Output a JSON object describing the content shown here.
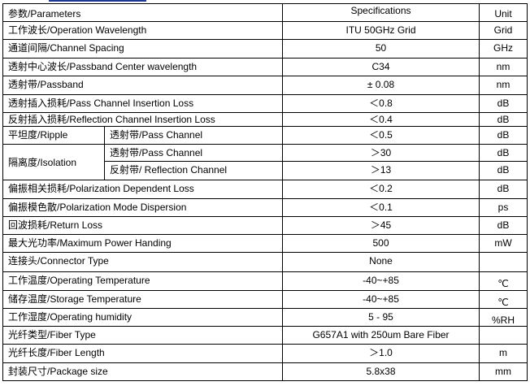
{
  "header": {
    "parameter": "参数/Parameters",
    "spec": "Specifications",
    "unit": "Unit"
  },
  "rows": [
    {
      "param": "工作波长/Operation Wavelength",
      "spec": "ITU 50GHz Grid",
      "unit": "Grid"
    },
    {
      "param": "通道间隔/Channel Spacing",
      "spec": "50",
      "unit": "GHz"
    },
    {
      "param": "透射中心波长/Passband Center wavelength",
      "spec": "C34",
      "unit": "nm"
    },
    {
      "param": "透射带/Passband",
      "spec": "± 0.08",
      "unit": "nm"
    },
    {
      "param": "透射插入损耗/Pass Channel Insertion Loss",
      "spec": "＜0.8",
      "unit": "dB"
    },
    {
      "param": "反射插入损耗/Reflection Channel Insertion Loss",
      "spec": "＜0.4",
      "unit": "dB"
    },
    {
      "param": "平坦度/Ripple",
      "sub": "透射带/Pass Channel",
      "spec": "＜0.5",
      "unit": "dB"
    },
    {
      "param": "隔离度/Isolation",
      "sub": "透射带/Pass Channel",
      "spec": "＞30",
      "unit": "dB"
    },
    {
      "sub": "反射带/ Reflection Channel",
      "spec": "＞13",
      "unit": "dB"
    },
    {
      "param": "偏振相关损耗/Polarization Dependent Loss",
      "spec": "＜0.2",
      "unit": "dB"
    },
    {
      "param": "偏振模色散/Polarization Mode Dispersion",
      "spec": "＜0.1",
      "unit": "ps"
    },
    {
      "param": "回波损耗/Return Loss",
      "spec": "＞45",
      "unit": "dB"
    },
    {
      "param": "最大光功率/Maximum Power Handing",
      "spec": "500",
      "unit": "mW"
    },
    {
      "param": "连接头/Connector Type",
      "spec": "None",
      "unit": ""
    },
    {
      "param": "工作温度/Operating Temperature",
      "spec": "-40~+85",
      "unit": "℃"
    },
    {
      "param": "储存温度/Storage Temperature",
      "spec": "-40~+85",
      "unit": "℃"
    },
    {
      "param": "工作湿度/Operating humidity",
      "spec": "5 - 95",
      "unit": "%RH"
    },
    {
      "param": "光纤类型/Fiber Type",
      "spec": "G657A1 with 250um Bare Fiber",
      "unit": ""
    },
    {
      "param": "光纤长度/Fiber Length",
      "spec": "＞1.0",
      "unit": "m"
    },
    {
      "param": "封装尺寸/Package size",
      "spec": "5.8x38",
      "unit": "mm"
    }
  ]
}
